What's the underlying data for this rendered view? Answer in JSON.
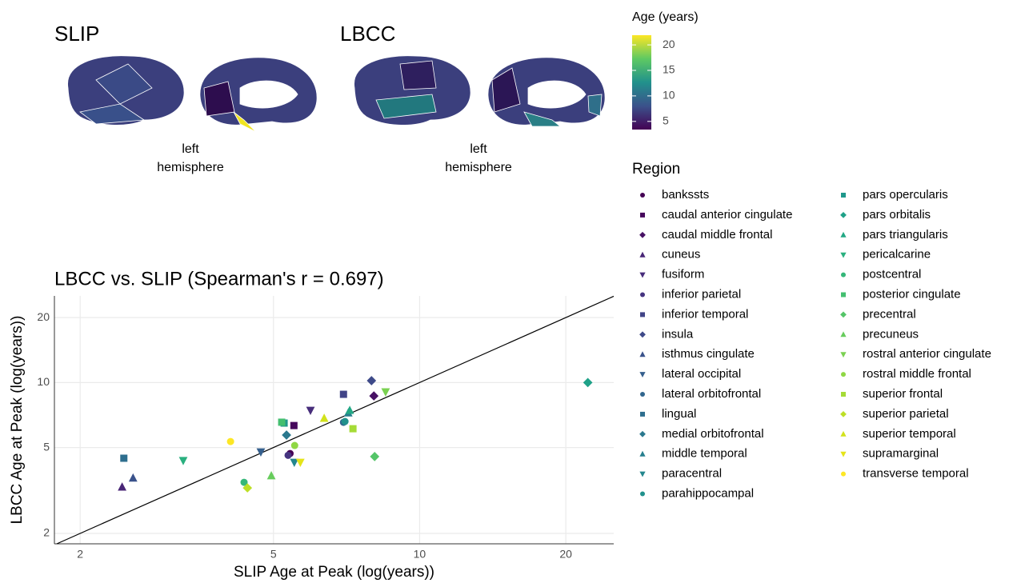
{
  "brain_panels": [
    {
      "title": "SLIP",
      "side": "left",
      "caption": "hemisphere"
    },
    {
      "title": "LBCC",
      "side": "left",
      "caption": "hemisphere"
    }
  ],
  "colorbar": {
    "title": "Age (years)",
    "lim": [
      3.4,
      21.9
    ],
    "ticks": [
      5,
      10,
      15,
      20
    ]
  },
  "chart_data": {
    "type": "scatter",
    "title": "LBCC vs. SLIP (Spearman's r = 0.697)",
    "x_label": "SLIP Age at Peak (log(years))",
    "y_label": "LBCC Age at Peak (log(years))",
    "legend_title": "Region",
    "xscale": "log",
    "yscale": "log",
    "xlim": [
      1.77,
      25.1
    ],
    "ylim": [
      1.79,
      25.2
    ],
    "xticks": [
      2,
      5,
      10,
      20
    ],
    "yticks": [
      2,
      5,
      10,
      20
    ],
    "grid": true,
    "identity_line": true,
    "legend_position": "right",
    "series": [
      {
        "name": "bankssts",
        "color": "#440154",
        "marker": "circle",
        "x": [
          5.41
        ],
        "values": [
          4.69
        ]
      },
      {
        "name": "caudal anterior cingulate",
        "color": "#46085c",
        "marker": "square",
        "x": [
          5.51
        ],
        "values": [
          6.32
        ]
      },
      {
        "name": "caudal middle frontal",
        "color": "#471164",
        "marker": "diamond",
        "x": [
          8.05
        ],
        "values": [
          8.67
        ]
      },
      {
        "name": "cuneus",
        "color": "#482576",
        "marker": "triangle-up",
        "x": [
          2.44
        ],
        "values": [
          3.28
        ]
      },
      {
        "name": "fusiform",
        "color": "#472d7b",
        "marker": "triangle-down",
        "x": [
          5.96
        ],
        "values": [
          7.43
        ]
      },
      {
        "name": "inferior parietal",
        "color": "#463480",
        "marker": "circle",
        "x": [
          5.36
        ],
        "values": [
          4.6
        ]
      },
      {
        "name": "inferior temporal",
        "color": "#414487",
        "marker": "square",
        "x": [
          6.97
        ],
        "values": [
          8.82
        ]
      },
      {
        "name": "insula",
        "color": "#3e4a89",
        "marker": "diamond",
        "x": [
          7.96
        ],
        "values": [
          10.2
        ]
      },
      {
        "name": "isthmus cingulate",
        "color": "#3a528b",
        "marker": "triangle-up",
        "x": [
          2.57
        ],
        "values": [
          3.61
        ]
      },
      {
        "name": "lateral occipital",
        "color": "#355f8d",
        "marker": "triangle-down",
        "x": [
          4.71
        ],
        "values": [
          4.77
        ]
      },
      {
        "name": "lateral orbitofrontal",
        "color": "#31668e",
        "marker": "circle",
        "x": [
          6.97
        ],
        "values": [
          6.54
        ]
      },
      {
        "name": "lingual",
        "color": "#2e6e8e",
        "marker": "square",
        "x": [
          2.46
        ],
        "values": [
          4.46
        ]
      },
      {
        "name": "medial orbitofrontal",
        "color": "#2a788e",
        "marker": "diamond",
        "x": [
          5.32
        ],
        "values": [
          5.71
        ]
      },
      {
        "name": "middle temporal",
        "color": "#277f8e",
        "marker": "triangle-up",
        "x": [
          7.13
        ],
        "values": [
          7.24
        ]
      },
      {
        "name": "paracentral",
        "color": "#24878e",
        "marker": "triangle-down",
        "x": [
          5.52
        ],
        "values": [
          4.27
        ]
      },
      {
        "name": "parahippocampal",
        "color": "#21918c",
        "marker": "circle",
        "x": [
          7.02
        ],
        "values": [
          6.6
        ]
      },
      {
        "name": "pars opercularis",
        "color": "#1f988b",
        "marker": "square",
        "x": [
          5.26
        ],
        "values": [
          6.49
        ]
      },
      {
        "name": "pars orbitalis",
        "color": "#1fa188",
        "marker": "diamond",
        "x": [
          22.2
        ],
        "values": [
          10.0
        ]
      },
      {
        "name": "pars triangularis",
        "color": "#22a884",
        "marker": "triangle-up",
        "x": [
          7.18
        ],
        "values": [
          7.43
        ]
      },
      {
        "name": "pericalcarine",
        "color": "#2ab07f",
        "marker": "triangle-down",
        "x": [
          3.26
        ],
        "values": [
          4.35
        ]
      },
      {
        "name": "postcentral",
        "color": "#35b779",
        "marker": "circle",
        "x": [
          4.35
        ],
        "values": [
          3.45
        ]
      },
      {
        "name": "posterior cingulate",
        "color": "#44bf70",
        "marker": "square",
        "x": [
          5.2
        ],
        "values": [
          6.55
        ]
      },
      {
        "name": "precentral",
        "color": "#54c568",
        "marker": "diamond",
        "x": [
          8.08
        ],
        "values": [
          4.54
        ]
      },
      {
        "name": "precuneus",
        "color": "#67cc5c",
        "marker": "triangle-up",
        "x": [
          4.95
        ],
        "values": [
          3.7
        ]
      },
      {
        "name": "rostral anterior cingulate",
        "color": "#7ad151",
        "marker": "triangle-down",
        "x": [
          8.51
        ],
        "values": [
          9.05
        ]
      },
      {
        "name": "rostral middle frontal",
        "color": "#8fd744",
        "marker": "circle",
        "x": [
          5.53
        ],
        "values": [
          5.11
        ]
      },
      {
        "name": "superior frontal",
        "color": "#a5db36",
        "marker": "square",
        "x": [
          7.29
        ],
        "values": [
          6.11
        ]
      },
      {
        "name": "superior parietal",
        "color": "#bddf26",
        "marker": "diamond",
        "x": [
          4.42
        ],
        "values": [
          3.25
        ]
      },
      {
        "name": "superior temporal",
        "color": "#d2e21b",
        "marker": "triangle-up",
        "x": [
          6.36
        ],
        "values": [
          6.83
        ]
      },
      {
        "name": "supramarginal",
        "color": "#e5e419",
        "marker": "triangle-down",
        "x": [
          5.68
        ],
        "values": [
          4.27
        ]
      },
      {
        "name": "transverse temporal",
        "color": "#fde725",
        "marker": "circle",
        "x": [
          4.08
        ],
        "values": [
          5.33
        ]
      }
    ]
  }
}
